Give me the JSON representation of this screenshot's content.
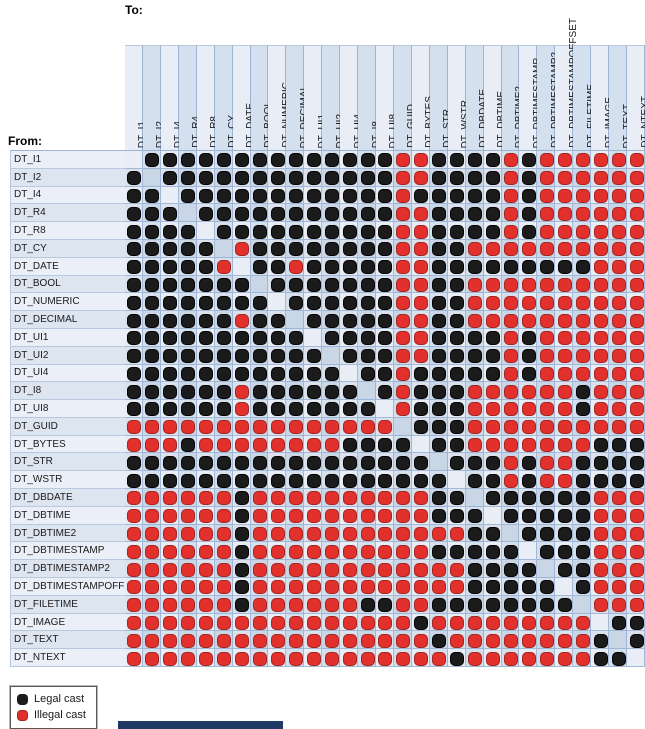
{
  "title_to": "To:",
  "title_from": "From:",
  "legend": {
    "legal": "Legal cast",
    "illegal": "Illegal cast"
  },
  "colors": {
    "legal_dot": "#1b1b1b",
    "illegal_dot": "#e2312d",
    "grid_line": "#9db4d4",
    "col_light": "#e9eef6",
    "col_dark": "#d5e0ee",
    "row_shade": "rgba(96,125,170,0.10)",
    "label_light": "#ebeff7",
    "label_dark": "#dde5f1",
    "bottom_bar": "#1f3864"
  },
  "chart_data": {
    "type": "heatmap",
    "cell_codes": {
      "B": "Legal cast (black dot)",
      "R": "Illegal cast (red dot)",
      ".": "same type (empty cell)"
    },
    "columns": [
      "DT_I1",
      "DT_I2",
      "DT_I4",
      "DT_R4",
      "DT_R8",
      "DT_CY",
      "DT_DATE",
      "DT_BOOL",
      "DT_NUMERIC",
      "DT_DECIMAL",
      "DT_UI1",
      "DT_UI2",
      "DT_UI4",
      "DT_I8",
      "DT_UI8",
      "DT_GUID",
      "DT_BYTES",
      "DT_STR",
      "DT_WSTR",
      "DT_DBDATE",
      "DT_DBTIME",
      "DT_DBTIME2",
      "DT_DBTIMESTAMP",
      "DT_DBTIMESTAMP2",
      "DT_DBTIMESTAMPOFFSET",
      "DT_FILETIME",
      "DT_IMAGE",
      "DT_TEXT",
      "DT_NTEXT"
    ],
    "rows": [
      {
        "from": "DT_I1",
        "cells": ".BBBBBBBBBBBBBBRRBBBBRBRRRRRR"
      },
      {
        "from": "DT_I2",
        "cells": "B.BBBBBBBBBBBBBRRBBBBRBRRRRRR"
      },
      {
        "from": "DT_I4",
        "cells": "BB.BBBBBBBBBBBBRBBBBBRBRRRRRR"
      },
      {
        "from": "DT_R4",
        "cells": "BBB.BBBBBBBBBBBRRBBBBRBRRRRRR"
      },
      {
        "from": "DT_R8",
        "cells": "BBBB.BBBBBBBBBBRRBBBBRBRRRRRR"
      },
      {
        "from": "DT_CY",
        "cells": "BBBBB.RBBBBBBBBRRBBRRRRRRRRRR"
      },
      {
        "from": "DT_DATE",
        "cells": "BBBBBR.BBRBBBBBRRBBBBBBBBBRRR"
      },
      {
        "from": "DT_BOOL",
        "cells": "BBBBBBB.BBBBBBBRRBBRRRRRRRRRR"
      },
      {
        "from": "DT_NUMERIC",
        "cells": "BBBBBBBB.BBBBBBRRBBRRRRRRRRRR"
      },
      {
        "from": "DT_DECIMAL",
        "cells": "BBBBBBRBB.BBBBBRRBBRRRRRRRRRR"
      },
      {
        "from": "DT_UI1",
        "cells": "BBBBBBBBBB.BBBBRRBBBBRBRRRRRR"
      },
      {
        "from": "DT_UI2",
        "cells": "BBBBBBBBBBB.BBBRRBBBBRBRRRRRR"
      },
      {
        "from": "DT_UI4",
        "cells": "BBBBBBBBBBBB.BBRBBBBBRBRRRRRR"
      },
      {
        "from": "DT_I8",
        "cells": "BBBBBBRBBBBBB.BRBBBRRRRRRBRRR"
      },
      {
        "from": "DT_UI8",
        "cells": "BBBBBBRBBBBBBB.RBBBRRRRRRBRRR"
      },
      {
        "from": "DT_GUID",
        "cells": "RRRRRRRRRRRRRRR.BBBRRRRRRRRRR"
      },
      {
        "from": "DT_BYTES",
        "cells": "RRRBRRRRRRRRBBBB.BBRRRRRRRBBB"
      },
      {
        "from": "DT_STR",
        "cells": "BBBBBBBBBBBBBBBBB.BBBRBRRBBBB"
      },
      {
        "from": "DT_WSTR",
        "cells": "BBBBBBBBBBBBBBBBBB.BBRBRRBBBB"
      },
      {
        "from": "DT_DBDATE",
        "cells": "RRRRRRBRRRRRRRRRRBB.BBBBBBRRR"
      },
      {
        "from": "DT_DBTIME",
        "cells": "RRRRRRBRRRRRRRRRRBBB.BBBBBRRR"
      },
      {
        "from": "DT_DBTIME2",
        "cells": "RRRRRRBRRRRRRRRRRRRBB.BBBBRRR"
      },
      {
        "from": "DT_DBTIMESTAMP",
        "cells": "RRRRRRBRRRRRRRRRRBBBBB.BBBRRR"
      },
      {
        "from": "DT_DBTIMESTAMP2",
        "cells": "RRRRRRBRRRRRRRRRRRRBBBB.BBRRR"
      },
      {
        "from": "DT_DBTIMESTAMPOFFSET",
        "cells": "RRRRRRBRRRRRRRRRRRRBBBBB.BRRR"
      },
      {
        "from": "DT_FILETIME",
        "cells": "RRRRRRBRRRRRRBBRRBBBBBBBB.RRR"
      },
      {
        "from": "DT_IMAGE",
        "cells": "RRRRRRRRRRRRRRRRBRRRRRRRRR.BB"
      },
      {
        "from": "DT_TEXT",
        "cells": "RRRRRRRRRRRRRRRRRBRRRRRRRRB.B"
      },
      {
        "from": "DT_NTEXT",
        "cells": "RRRRRRRRRRRRRRRRRRBRRRRRRRBB."
      }
    ],
    "legend_entries": [
      "Legal cast",
      "Illegal cast"
    ],
    "legend_position": "bottom-left"
  }
}
